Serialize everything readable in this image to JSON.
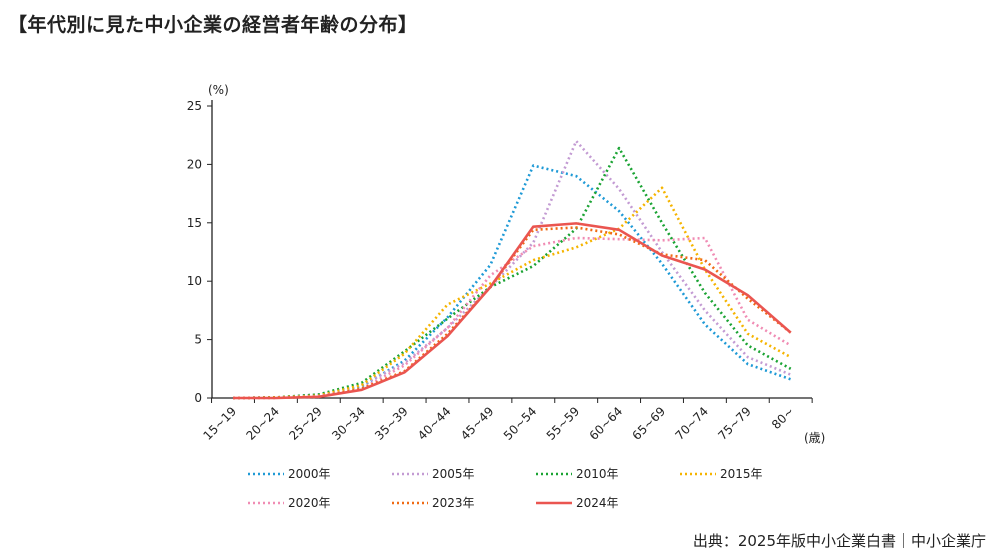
{
  "title": "【年代別に見た中小企業の経営者年齢の分布】",
  "source": "出典：2025年版中小企業白書｜中小企業庁",
  "chart_data": {
    "type": "line",
    "ylabel": "(%)",
    "xlabel": "(歳)",
    "ylim": [
      0,
      25
    ],
    "yticks": [
      0,
      5,
      10,
      15,
      20,
      25
    ],
    "grid": false,
    "legend": "bottom",
    "categories": [
      "15~19",
      "20~24",
      "25~29",
      "30~34",
      "35~39",
      "40~44",
      "45~49",
      "50~54",
      "55~59",
      "60~64",
      "65~69",
      "70~74",
      "75~79",
      "80~"
    ],
    "series": [
      {
        "name": "2000年",
        "color": "#1f9ad6",
        "style": "dotted",
        "values": [
          0,
          0.05,
          0.3,
          1.0,
          3.2,
          6.9,
          11.4,
          19.9,
          19.0,
          16.0,
          11.5,
          6.3,
          2.9,
          1.6
        ]
      },
      {
        "name": "2005年",
        "color": "#c39bd3",
        "style": "dotted",
        "values": [
          0,
          0.05,
          0.3,
          1.1,
          3.0,
          6.0,
          9.5,
          13.3,
          22.0,
          17.9,
          12.5,
          7.5,
          3.5,
          2.0
        ]
      },
      {
        "name": "2010年",
        "color": "#1aa333",
        "style": "dotted",
        "values": [
          0,
          0.05,
          0.3,
          1.3,
          4.0,
          6.8,
          9.5,
          11.3,
          14.5,
          21.4,
          15.0,
          9.0,
          4.5,
          2.5
        ]
      },
      {
        "name": "2015年",
        "color": "#f5b400",
        "style": "dotted",
        "values": [
          0,
          0.05,
          0.2,
          1.1,
          3.8,
          8.0,
          9.8,
          11.8,
          12.9,
          14.5,
          18.0,
          11.0,
          5.5,
          3.5
        ]
      },
      {
        "name": "2020年",
        "color": "#f08cb4",
        "style": "dotted",
        "values": [
          0,
          0.02,
          0.15,
          0.8,
          2.8,
          6.0,
          10.5,
          13.0,
          13.7,
          13.6,
          13.5,
          13.7,
          6.7,
          4.5
        ]
      },
      {
        "name": "2023年",
        "color": "#f06a14",
        "style": "dotted",
        "values": [
          0,
          0.02,
          0.1,
          0.8,
          2.3,
          5.5,
          9.5,
          14.4,
          14.6,
          14.0,
          12.3,
          11.8,
          8.5,
          5.6
        ]
      },
      {
        "name": "2024年",
        "color": "#ea5550",
        "style": "solid",
        "values": [
          0,
          0,
          0.1,
          0.7,
          2.2,
          5.3,
          9.5,
          14.67,
          14.95,
          14.4,
          12.2,
          11.0,
          8.8,
          5.6
        ]
      }
    ]
  }
}
